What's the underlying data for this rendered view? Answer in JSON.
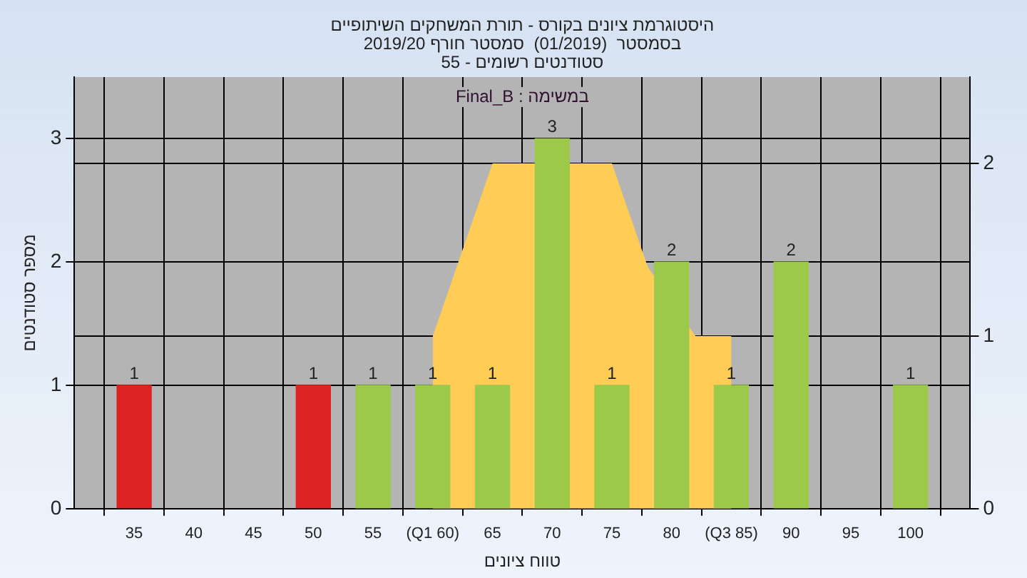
{
  "chart_data": {
    "type": "bar",
    "title": "היסטוגרמת ציונים בקורס - תורת המשחקים השיתופיים",
    "subtitle": "בסמסטר  (01/2019)  סמסטר חורף 2019/20\nסטודנטים רשומים - 55",
    "annotations": [
      "במשימה : Final_B"
    ],
    "xlabel": "טווח ציונים",
    "ylabel": "מספר סטודנטים",
    "xlim": [
      30,
      105
    ],
    "xticks": [
      35,
      40,
      45,
      50,
      55,
      {
        "value": 60,
        "label": "(Q1 60)"
      },
      65,
      70,
      75,
      80,
      {
        "value": 85,
        "label": "(Q3 85)"
      },
      90,
      95,
      100
    ],
    "ylim": [
      0,
      3.5
    ],
    "yticks": [
      0,
      1,
      2,
      3
    ],
    "y2lim": [
      0,
      2.5
    ],
    "y2ticks": [
      0,
      1,
      2
    ],
    "grid": true,
    "data_labels": true,
    "series": [
      {
        "type": "area",
        "axis": "y2",
        "color": "#ffcc55",
        "x": [
          60,
          65,
          75,
          78,
          82,
          85
        ],
        "values": [
          1,
          2,
          2,
          1.4,
          1,
          1
        ],
        "value_labels": [
          null,
          null,
          null,
          null,
          null,
          null
        ]
      },
      {
        "x": [
          35,
          50,
          55,
          60,
          65,
          70,
          75,
          80,
          85,
          90,
          100
        ],
        "values": [
          1,
          1,
          1,
          1,
          1,
          3,
          1,
          2,
          1,
          2,
          1
        ],
        "colors": [
          "#dd2222",
          "#dd2222",
          "#9cc94a",
          "#9cc94a",
          "#9cc94a",
          "#9cc94a",
          "#9cc94a",
          "#9cc94a",
          "#9cc94a",
          "#9cc94a",
          "#9cc94a"
        ]
      }
    ]
  }
}
